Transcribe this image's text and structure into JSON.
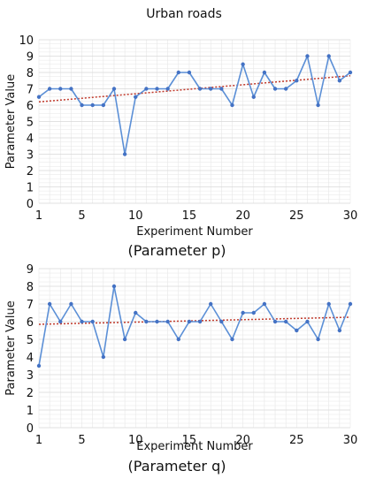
{
  "title": "Urban roads",
  "colors": {
    "line": "#5b8fd6",
    "marker": "#4472c4",
    "trend": "#c0392b",
    "grid": "#e6e6e6"
  },
  "chart_data": [
    {
      "type": "line",
      "caption": "(Parameter  p)",
      "xlabel": "Experiment Number",
      "ylabel": "Parameter Value",
      "xlim": [
        1,
        30
      ],
      "ylim": [
        0,
        10
      ],
      "x_ticks": [
        1,
        5,
        10,
        15,
        20,
        25,
        30
      ],
      "y_ticks": [
        0,
        1,
        2,
        3,
        4,
        5,
        6,
        7,
        8,
        9,
        10
      ],
      "grid": true,
      "x": [
        1,
        2,
        3,
        4,
        5,
        6,
        7,
        8,
        9,
        10,
        11,
        12,
        13,
        14,
        15,
        16,
        17,
        18,
        19,
        20,
        21,
        22,
        23,
        24,
        25,
        26,
        27,
        28,
        29,
        30
      ],
      "series": [
        {
          "values": [
            6.5,
            7,
            7,
            7,
            6,
            6,
            6,
            7,
            3,
            6.5,
            7,
            7,
            7,
            8,
            8,
            7,
            7,
            7,
            6,
            8.5,
            6.5,
            8,
            7,
            7,
            7.5,
            9,
            6,
            9,
            7.5,
            8
          ]
        }
      ],
      "trendline": {
        "type": "linear",
        "style": "dotted",
        "from": [
          1,
          6.2
        ],
        "to": [
          30,
          7.8
        ]
      }
    },
    {
      "type": "line",
      "caption": "(Parameter  q)",
      "xlabel": "Experiment Number",
      "ylabel": "Parameter Value",
      "xlim": [
        1,
        30
      ],
      "ylim": [
        0,
        9
      ],
      "x_ticks": [
        1,
        5,
        10,
        15,
        20,
        25,
        30
      ],
      "y_ticks": [
        0,
        1,
        2,
        3,
        4,
        5,
        6,
        7,
        8,
        9
      ],
      "grid": true,
      "x": [
        1,
        2,
        3,
        4,
        5,
        6,
        7,
        8,
        9,
        10,
        11,
        12,
        13,
        14,
        15,
        16,
        17,
        18,
        19,
        20,
        21,
        22,
        23,
        24,
        25,
        26,
        27,
        28,
        29,
        30
      ],
      "series": [
        {
          "values": [
            3.5,
            7,
            6,
            7,
            6,
            6,
            4,
            8,
            5,
            6.5,
            6,
            6,
            6,
            5,
            6,
            6,
            7,
            6,
            5,
            6.5,
            6.5,
            7,
            6,
            6,
            5.5,
            6,
            5,
            7,
            5.5,
            7
          ]
        }
      ],
      "trendline": {
        "type": "linear",
        "style": "dotted",
        "from": [
          1,
          5.85
        ],
        "to": [
          30,
          6.25
        ]
      }
    }
  ]
}
